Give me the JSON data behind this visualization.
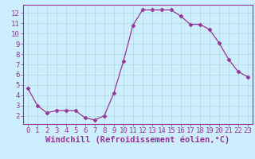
{
  "x": [
    0,
    1,
    2,
    3,
    4,
    5,
    6,
    7,
    8,
    9,
    10,
    11,
    12,
    13,
    14,
    15,
    16,
    17,
    18,
    19,
    20,
    21,
    22,
    23
  ],
  "y": [
    4.7,
    3.0,
    2.3,
    2.5,
    2.5,
    2.5,
    1.8,
    1.6,
    2.0,
    4.2,
    7.3,
    10.8,
    12.3,
    12.3,
    12.3,
    12.3,
    11.7,
    10.9,
    10.9,
    10.4,
    9.1,
    7.5,
    6.3,
    5.8
  ],
  "line_color": "#993399",
  "marker": "D",
  "marker_size": 2.5,
  "bg_color": "#cceeff",
  "grid_color": "#aadddd",
  "xlabel": "Windchill (Refroidissement éolien,°C)",
  "ylim": [
    1.2,
    12.8
  ],
  "yticks": [
    2,
    3,
    4,
    5,
    6,
    7,
    8,
    9,
    10,
    11,
    12
  ],
  "xticks": [
    0,
    1,
    2,
    3,
    4,
    5,
    6,
    7,
    8,
    9,
    10,
    11,
    12,
    13,
    14,
    15,
    16,
    17,
    18,
    19,
    20,
    21,
    22,
    23
  ],
  "spine_color": "#993399",
  "tick_color": "#993399",
  "label_color": "#993399",
  "font_size": 6.5,
  "xlabel_font_size": 7.5
}
